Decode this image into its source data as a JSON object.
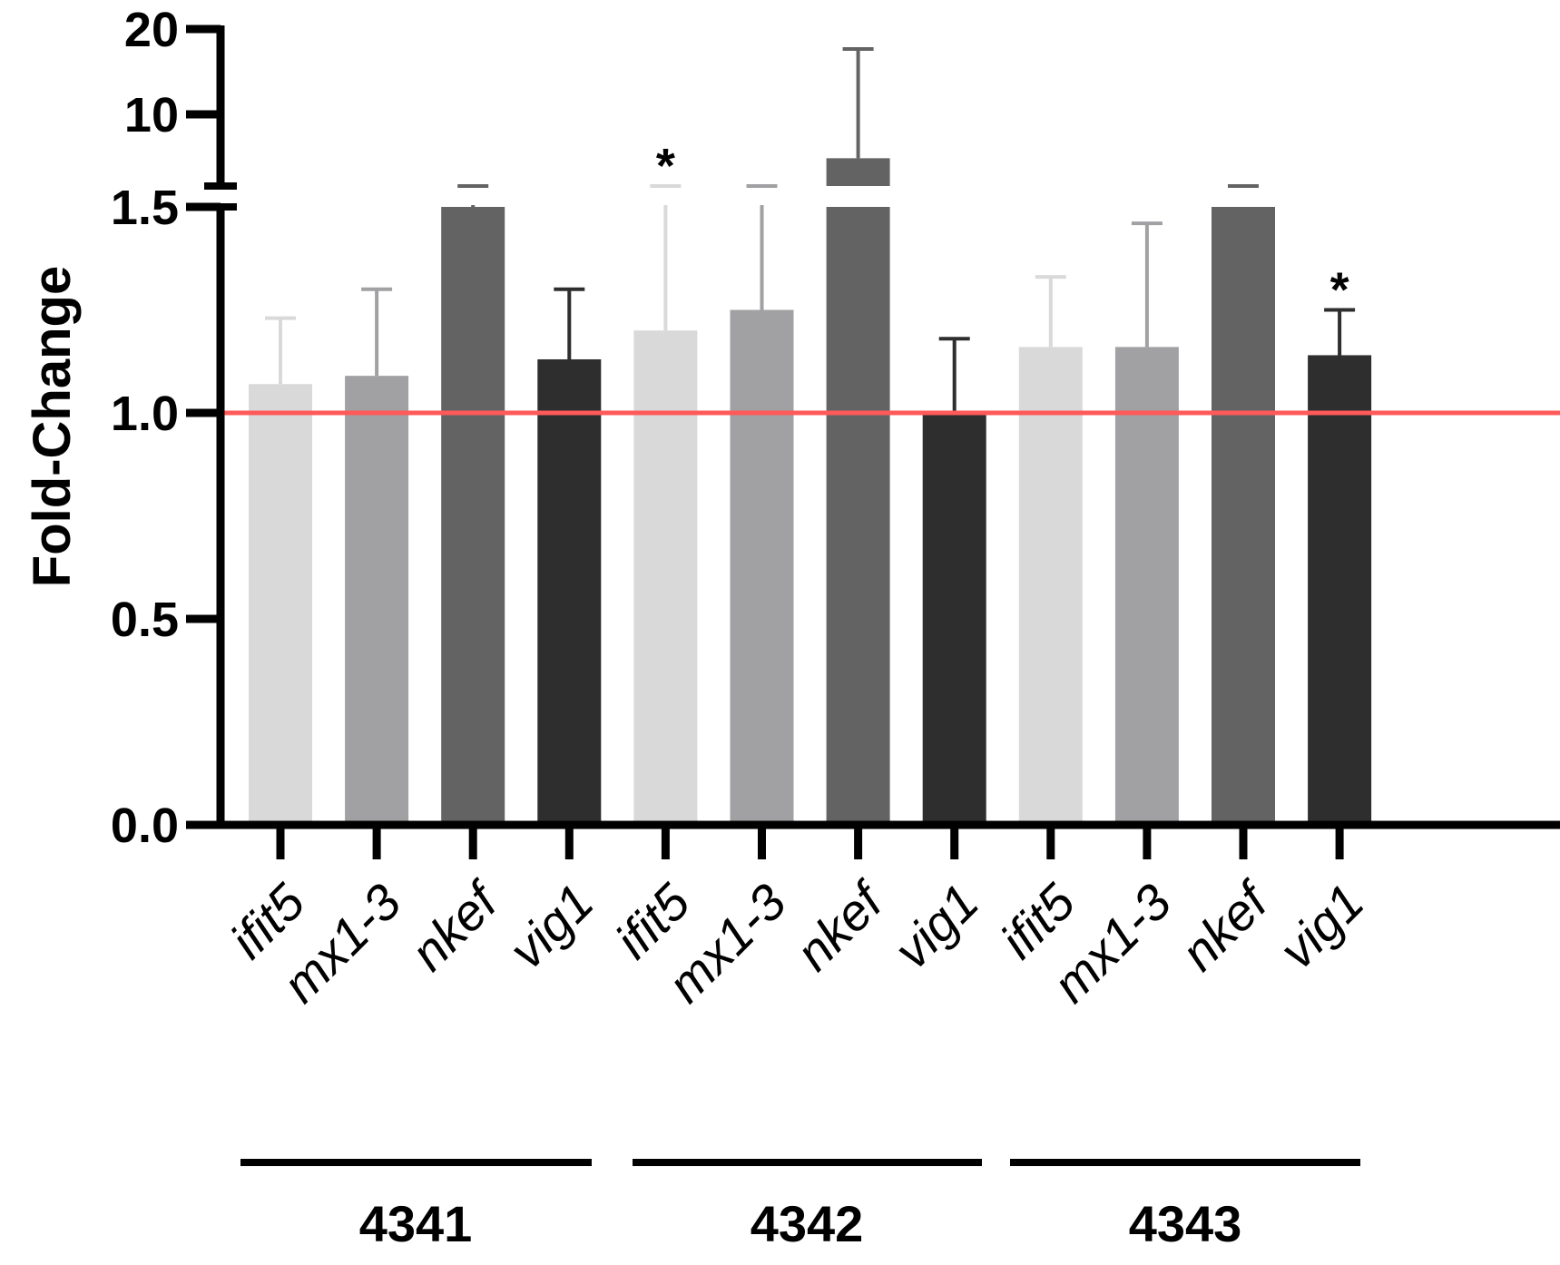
{
  "chart_data": {
    "type": "bar",
    "title": "",
    "xlabel": "",
    "ylabel": "Fold-Change",
    "y_axis": {
      "lower_segment": {
        "range": [
          0,
          1.5
        ],
        "ticks": [
          "0.0",
          "0.5",
          "1.0",
          "1.5"
        ]
      },
      "upper_segment": {
        "range": [
          1.5,
          20
        ],
        "scale": "log",
        "ticks": [
          "10",
          "20"
        ]
      },
      "axis_break_between": [
        1.5,
        1.6
      ]
    },
    "reference_line": {
      "value": 1.0,
      "color": "#ff5a5a"
    },
    "gene_colors": {
      "ifit5": "#d9d9d9",
      "mx1-3": "#a1a1a4",
      "nkef": "#636363",
      "vig1": "#2e2e2e"
    },
    "groups": [
      {
        "name": "4341",
        "bars": [
          {
            "category": "ifit5",
            "value": 1.07,
            "error": 0.16,
            "sig": ""
          },
          {
            "category": "mx1-3",
            "value": 1.09,
            "error": 0.21,
            "sig": ""
          },
          {
            "category": "nkef",
            "value": 1.5,
            "error": 0.3,
            "sig": ""
          },
          {
            "category": "vig1",
            "value": 1.13,
            "error": 0.17,
            "sig": ""
          }
        ]
      },
      {
        "name": "4342",
        "bars": [
          {
            "category": "ifit5",
            "value": 1.2,
            "error": 0.5,
            "sig": "*"
          },
          {
            "category": "mx1-3",
            "value": 1.25,
            "error": 0.4,
            "sig": ""
          },
          {
            "category": "nkef",
            "value": 7.0,
            "error": 10.0,
            "sig": ""
          },
          {
            "category": "vig1",
            "value": 1.0,
            "error": 0.18,
            "sig": ""
          }
        ]
      },
      {
        "name": "4343",
        "bars": [
          {
            "category": "ifit5",
            "value": 1.16,
            "error": 0.17,
            "sig": ""
          },
          {
            "category": "mx1-3",
            "value": 1.16,
            "error": 0.3,
            "sig": ""
          },
          {
            "category": "nkef",
            "value": 1.55,
            "error": 0.45,
            "sig": ""
          },
          {
            "category": "vig1",
            "value": 1.14,
            "error": 0.11,
            "sig": "*"
          }
        ]
      }
    ]
  }
}
